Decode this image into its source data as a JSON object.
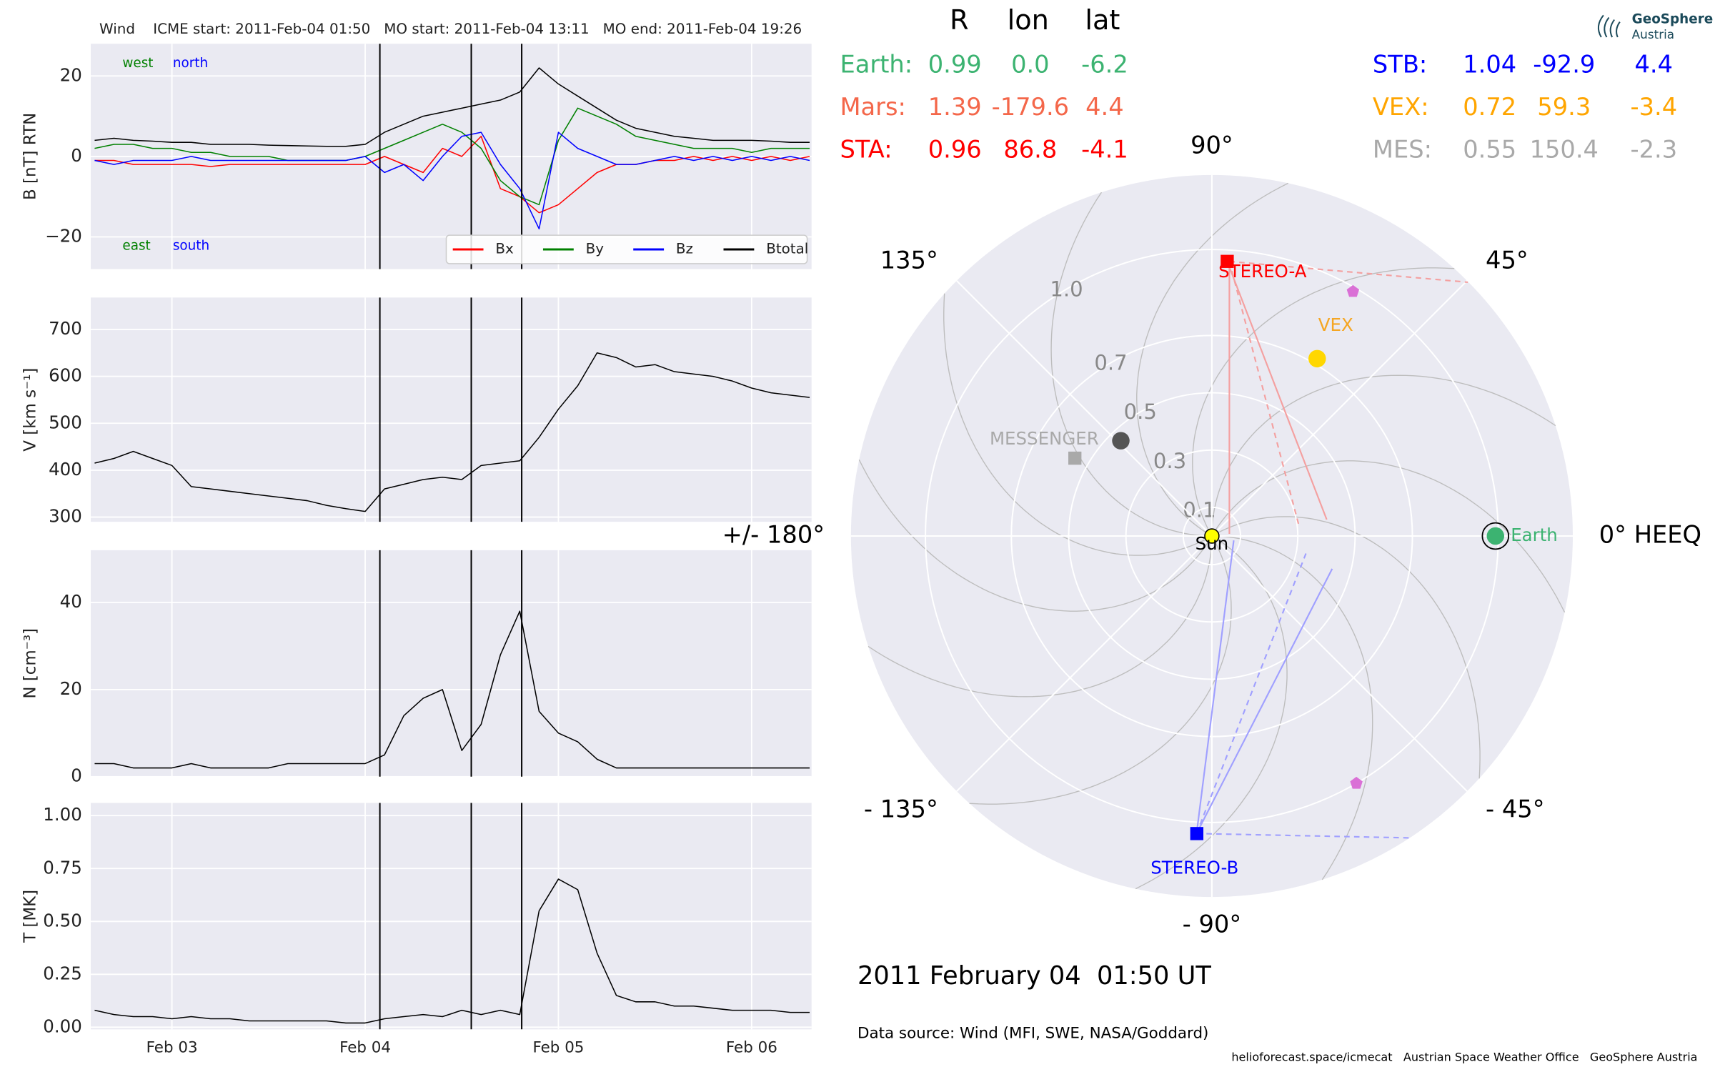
{
  "chart_data": [
    {
      "type": "line",
      "title": "Wind    ICME start: 2011-Feb-04 01:50   MO start: 2011-Feb-04 13:11   MO end: 2011-Feb-04 19:26",
      "ylabel": "B [nT] RTN",
      "grid": true,
      "legend": "lower right",
      "xlim": [
        2.58,
        6.31
      ],
      "xticks": [
        3,
        4,
        5,
        6
      ],
      "xtick_labels": false,
      "ylim": [
        -28,
        28
      ],
      "yticks": [
        {
          "value": -20,
          "label": "−20"
        },
        0,
        20
      ],
      "vlines": [
        4.076,
        4.549,
        4.81
      ],
      "annotations": [
        {
          "text": "west",
          "color": "#008000"
        },
        {
          "text": "north",
          "color": "#0000ff"
        },
        {
          "text": "east",
          "color": "#008000"
        },
        {
          "text": "south",
          "color": "#0000ff"
        }
      ],
      "x": [
        2.6,
        2.7,
        2.8,
        2.9,
        3.0,
        3.1,
        3.2,
        3.3,
        3.4,
        3.5,
        3.6,
        3.7,
        3.8,
        3.9,
        4.0,
        4.1,
        4.2,
        4.3,
        4.4,
        4.5,
        4.6,
        4.7,
        4.8,
        4.9,
        5.0,
        5.1,
        5.2,
        5.3,
        5.4,
        5.5,
        5.6,
        5.7,
        5.8,
        5.9,
        6.0,
        6.1,
        6.2,
        6.3
      ],
      "series": [
        {
          "name": "Bx",
          "color": "#ff0000",
          "values": [
            -1,
            -1,
            -2,
            -2,
            -2,
            -2,
            -2.5,
            -2,
            -2,
            -2,
            -2,
            -2,
            -2,
            -2,
            -2,
            0,
            -2,
            -4,
            2,
            0,
            5,
            -8,
            -10,
            -14,
            -12,
            -8,
            -4,
            -2,
            -2,
            -1,
            -1,
            0,
            -1,
            0,
            -1,
            0,
            -1,
            0
          ]
        },
        {
          "name": "By",
          "color": "#008000",
          "values": [
            2,
            3,
            3,
            2,
            2,
            1,
            1,
            0,
            0,
            0,
            -1,
            -1,
            -1,
            -1,
            0,
            2,
            4,
            6,
            8,
            6,
            2,
            -6,
            -10,
            -12,
            4,
            12,
            10,
            8,
            5,
            4,
            3,
            2,
            2,
            2,
            1,
            2,
            2,
            2
          ]
        },
        {
          "name": "Bz",
          "color": "#0000ff",
          "values": [
            -1,
            -2,
            -1,
            -1,
            -1,
            0,
            -1,
            -1,
            -1,
            -1,
            -1,
            -1,
            -1,
            -1,
            0,
            -4,
            -2,
            -6,
            0,
            5,
            6,
            -2,
            -8,
            -18,
            6,
            2,
            0,
            -2,
            -2,
            -1,
            0,
            -1,
            0,
            -1,
            0,
            -1,
            0,
            -1
          ]
        },
        {
          "name": "Btotal",
          "color": "#000000",
          "values": [
            4,
            4.5,
            4,
            3.8,
            3.5,
            3.5,
            3,
            3,
            3,
            2.8,
            2.7,
            2.6,
            2.5,
            2.5,
            3,
            6,
            8,
            10,
            11,
            12,
            13,
            14,
            16,
            22,
            18,
            15,
            12,
            9,
            7,
            6,
            5,
            4.5,
            4,
            4,
            4,
            3.8,
            3.5,
            3.5
          ]
        }
      ]
    },
    {
      "type": "line",
      "ylabel": "V [km s⁻¹]",
      "grid": true,
      "xlim": [
        2.58,
        6.31
      ],
      "xticks": [
        3,
        4,
        5,
        6
      ],
      "xtick_labels": false,
      "ylim": [
        290,
        768
      ],
      "yticks": [
        300,
        400,
        500,
        600,
        700
      ],
      "vlines": [
        4.076,
        4.549,
        4.81
      ],
      "x": [
        2.6,
        2.7,
        2.8,
        2.9,
        3.0,
        3.1,
        3.2,
        3.3,
        3.4,
        3.5,
        3.6,
        3.7,
        3.8,
        3.9,
        4.0,
        4.1,
        4.2,
        4.3,
        4.4,
        4.5,
        4.6,
        4.7,
        4.8,
        4.9,
        5.0,
        5.1,
        5.2,
        5.3,
        5.4,
        5.5,
        5.6,
        5.7,
        5.8,
        5.9,
        6.0,
        6.1,
        6.2,
        6.3
      ],
      "series": [
        {
          "color": "#000000",
          "values": [
            415,
            425,
            440,
            425,
            410,
            365,
            360,
            355,
            350,
            345,
            340,
            335,
            325,
            318,
            312,
            360,
            370,
            380,
            385,
            380,
            410,
            415,
            420,
            470,
            530,
            580,
            650,
            640,
            620,
            625,
            610,
            605,
            600,
            590,
            575,
            565,
            560,
            555
          ]
        }
      ]
    },
    {
      "type": "line",
      "ylabel": "N [cm⁻³]",
      "grid": true,
      "xlim": [
        2.58,
        6.31
      ],
      "xticks": [
        3,
        4,
        5,
        6
      ],
      "xtick_labels": false,
      "ylim": [
        0,
        52
      ],
      "yticks": [
        0,
        20,
        40
      ],
      "vlines": [
        4.076,
        4.549,
        4.81
      ],
      "x": [
        2.6,
        2.7,
        2.8,
        2.9,
        3.0,
        3.1,
        3.2,
        3.3,
        3.4,
        3.5,
        3.6,
        3.7,
        3.8,
        3.9,
        4.0,
        4.1,
        4.2,
        4.3,
        4.4,
        4.5,
        4.6,
        4.7,
        4.8,
        4.9,
        5.0,
        5.1,
        5.2,
        5.3,
        5.4,
        5.5,
        5.6,
        5.7,
        5.8,
        5.9,
        6.0,
        6.1,
        6.2,
        6.3
      ],
      "series": [
        {
          "color": "#000000",
          "values": [
            3,
            3,
            2,
            2,
            2,
            3,
            2,
            2,
            2,
            2,
            3,
            3,
            3,
            3,
            3,
            5,
            14,
            18,
            20,
            6,
            12,
            28,
            38,
            15,
            10,
            8,
            4,
            2,
            2,
            2,
            2,
            2,
            2,
            2,
            2,
            2,
            2,
            2
          ]
        }
      ]
    },
    {
      "type": "line",
      "ylabel": "T [MK]",
      "grid": true,
      "xlim": [
        2.58,
        6.31
      ],
      "xticks": [
        {
          "value": 3,
          "label": "Feb 03"
        },
        {
          "value": 4,
          "label": "Feb 04"
        },
        {
          "value": 5,
          "label": "Feb 05"
        },
        {
          "value": 6,
          "label": "Feb 06"
        }
      ],
      "ylim": [
        -0.01,
        1.06
      ],
      "yticks": [
        {
          "value": 0,
          "label": "0.00"
        },
        0.25,
        {
          "value": 0.5,
          "label": "0.50"
        },
        0.75,
        {
          "value": 1,
          "label": "1.00"
        }
      ],
      "vlines": [
        4.076,
        4.549,
        4.81
      ],
      "x": [
        2.6,
        2.7,
        2.8,
        2.9,
        3.0,
        3.1,
        3.2,
        3.3,
        3.4,
        3.5,
        3.6,
        3.7,
        3.8,
        3.9,
        4.0,
        4.1,
        4.2,
        4.3,
        4.4,
        4.5,
        4.6,
        4.7,
        4.8,
        4.9,
        5.0,
        5.1,
        5.2,
        5.3,
        5.4,
        5.5,
        5.6,
        5.7,
        5.8,
        5.9,
        6.0,
        6.1,
        6.2,
        6.3
      ],
      "series": [
        {
          "color": "#000000",
          "values": [
            0.08,
            0.06,
            0.05,
            0.05,
            0.04,
            0.05,
            0.04,
            0.04,
            0.03,
            0.03,
            0.03,
            0.03,
            0.03,
            0.02,
            0.02,
            0.04,
            0.05,
            0.06,
            0.05,
            0.08,
            0.06,
            0.08,
            0.06,
            0.55,
            0.7,
            0.65,
            0.35,
            0.15,
            0.12,
            0.12,
            0.1,
            0.1,
            0.09,
            0.08,
            0.08,
            0.08,
            0.07,
            0.07
          ]
        }
      ]
    },
    {
      "type": "polar",
      "grid": true,
      "rlim": [
        0,
        1.26
      ],
      "rticks": [
        0.1,
        0.3,
        0.5,
        0.7,
        {
          "value": 1,
          "label": "1.0"
        }
      ],
      "thetaticks": [
        {
          "value": 0,
          "label": "0° HEEQ"
        },
        {
          "value": 45,
          "label": "45°"
        },
        {
          "value": 90,
          "label": "90°"
        },
        {
          "value": 135,
          "label": "135°"
        },
        {
          "value": 180,
          "label": "+/- 180°"
        },
        {
          "value": -135,
          "label": "- 135°"
        },
        {
          "value": -90,
          "label": "- 90°"
        },
        {
          "value": -45,
          "label": "- 45°"
        }
      ],
      "points": [
        {
          "name": "Sun",
          "r": 0,
          "lon": 0,
          "color": "#ffff00",
          "label_color": "#000000",
          "marker": "circle"
        },
        {
          "name": "Earth",
          "r": 0.99,
          "lon": 0,
          "color": "#3cb371",
          "marker": "circle"
        },
        {
          "name": "STEREO-A",
          "r": 0.96,
          "lon": 86.8,
          "color": "#ff0000",
          "marker": "square"
        },
        {
          "name": "STEREO-B",
          "r": 1.04,
          "lon": -92.9,
          "color": "#0000ff",
          "marker": "square"
        },
        {
          "name": "VEX",
          "r": 0.72,
          "lon": 59.3,
          "color": "#ffd700",
          "label_color": "#f5a623",
          "marker": "circle"
        },
        {
          "name": "MESSENGER",
          "r": 0.55,
          "lon": 150.4,
          "color": "#a9a9a9",
          "marker": "square"
        },
        {
          "r": 0.46,
          "lon": 133.7,
          "color": "#555555",
          "marker": "circle"
        },
        {
          "r": 0.985,
          "lon": 60,
          "color": "#da70d6",
          "marker": "pentagon"
        },
        {
          "r": 1.0,
          "lon": -59.7,
          "color": "#da70d6",
          "marker": "pentagon"
        }
      ]
    }
  ],
  "positions": {
    "columns": [
      "R",
      "lon",
      "lat"
    ],
    "rows": [
      {
        "name": "Earth:",
        "color": "#3cb371",
        "values": [
          "0.99",
          "0.0",
          "-6.2"
        ]
      },
      {
        "name": "Mars:",
        "color": "#f4674a",
        "values": [
          "1.39",
          "-179.6",
          "4.4"
        ]
      },
      {
        "name": "STA:",
        "color": "#ff0000",
        "values": [
          "0.96",
          "86.8",
          "-4.1"
        ]
      },
      {
        "name": "STB:",
        "color": "#0000ff",
        "values": [
          "1.04",
          "-92.9",
          "4.4"
        ]
      },
      {
        "name": "VEX:",
        "color": "#ffa500",
        "values": [
          "0.72",
          "59.3",
          "-3.4"
        ]
      },
      {
        "name": "MES:",
        "color": "#a9a9a9",
        "values": [
          "0.55",
          "150.4",
          "-2.3"
        ]
      }
    ]
  },
  "date_label": "2011 February 04  01:50 UT",
  "data_source": "Data source: Wind (MFI, SWE, NASA/Goddard)",
  "credits": "helioforecast.space/icmecat   Austrian Space Weather Office   GeoSphere Austria",
  "logo": {
    "line1": "GeoSphere",
    "line2": "Austria"
  }
}
